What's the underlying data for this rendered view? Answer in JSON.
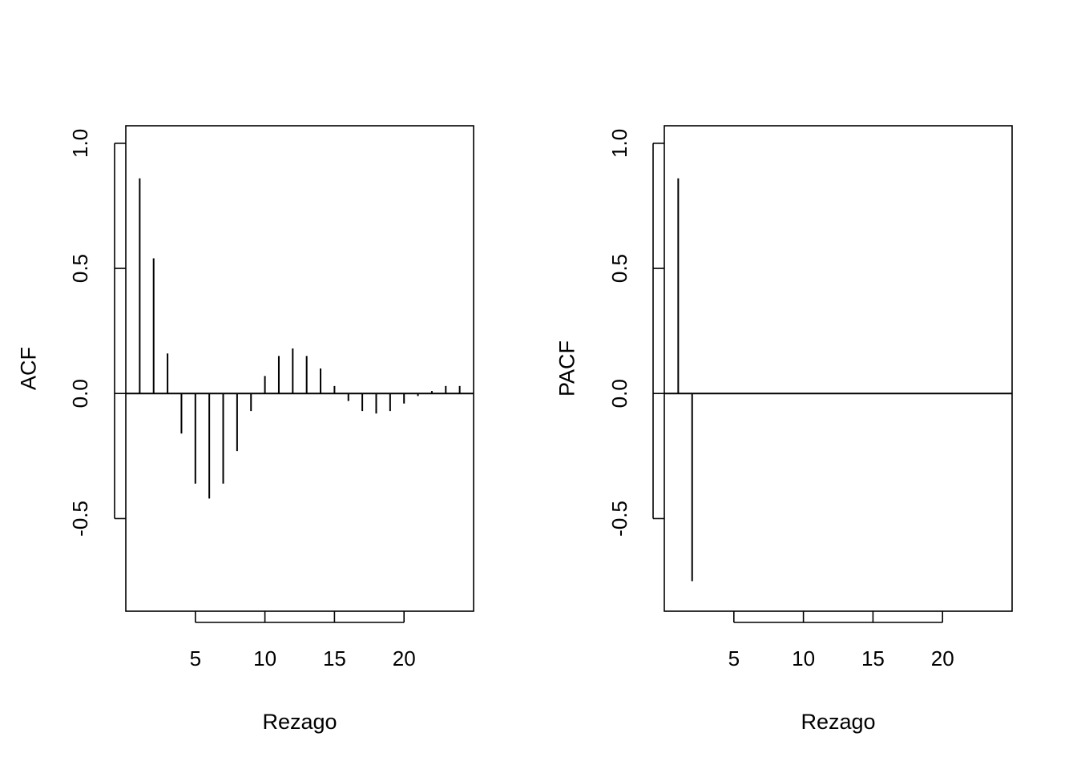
{
  "chart_data": [
    {
      "type": "bar",
      "subtype": "correlogram",
      "title": "",
      "xlabel": "Rezago",
      "ylabel": "ACF",
      "xlim": [
        0,
        25
      ],
      "ylim": [
        -0.87,
        1.07
      ],
      "xticks": [
        5,
        10,
        15,
        20
      ],
      "yticks": [
        1.0,
        0.5,
        0.0,
        -0.5
      ],
      "ytick_labels": [
        "1.0",
        "0.5",
        "0.0",
        "-0.5"
      ],
      "lags": [
        1,
        2,
        3,
        4,
        5,
        6,
        7,
        8,
        9,
        10,
        11,
        12,
        13,
        14,
        15,
        16,
        17,
        18,
        19,
        20,
        21,
        22,
        23,
        24
      ],
      "values": [
        0.86,
        0.54,
        0.16,
        -0.16,
        -0.36,
        -0.42,
        -0.36,
        -0.23,
        -0.07,
        0.07,
        0.15,
        0.18,
        0.15,
        0.1,
        0.03,
        -0.03,
        -0.07,
        -0.08,
        -0.07,
        -0.04,
        -0.01,
        0.01,
        0.03,
        0.03
      ],
      "grid": false,
      "legend": "none"
    },
    {
      "type": "bar",
      "subtype": "correlogram",
      "title": "",
      "xlabel": "Rezago",
      "ylabel": "PACF",
      "xlim": [
        0,
        25
      ],
      "ylim": [
        -0.87,
        1.07
      ],
      "xticks": [
        5,
        10,
        15,
        20
      ],
      "yticks": [
        1.0,
        0.5,
        0.0,
        -0.5
      ],
      "ytick_labels": [
        "1.0",
        "0.5",
        "0.0",
        "-0.5"
      ],
      "lags": [
        1,
        2,
        3,
        4,
        5,
        6,
        7,
        8,
        9,
        10,
        11,
        12,
        13,
        14,
        15,
        16,
        17,
        18,
        19,
        20,
        21,
        22,
        23,
        24
      ],
      "values": [
        0.86,
        -0.75,
        0,
        0,
        0,
        0,
        0,
        0,
        0,
        0,
        0,
        0,
        0,
        0,
        0,
        0,
        0,
        0,
        0,
        0,
        0,
        0,
        0,
        0
      ],
      "grid": false,
      "legend": "none"
    }
  ]
}
